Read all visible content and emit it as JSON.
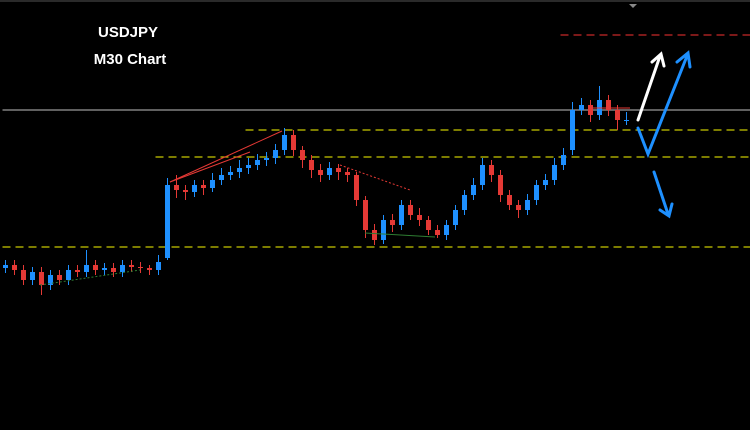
{
  "chart_data": {
    "type": "candlestick",
    "title": "USDJPY",
    "subtitle": "M30 Chart",
    "ylim": [
      0,
      430
    ],
    "up_color": "#1e90ff",
    "down_color": "#e53935",
    "open": [
      162,
      165,
      160,
      150,
      158,
      145,
      155,
      150,
      160,
      158,
      165,
      160,
      162,
      158,
      165,
      163,
      162,
      160,
      172,
      245,
      240,
      238,
      245,
      242,
      250,
      255,
      258,
      262,
      265,
      270,
      272,
      280,
      295,
      280,
      270,
      260,
      255,
      262,
      258,
      255,
      230,
      200,
      190,
      210,
      205,
      225,
      215,
      210,
      200,
      195,
      205,
      220,
      235,
      245,
      265,
      255,
      235,
      225,
      220,
      230,
      245,
      250,
      265,
      280,
      320,
      325,
      315,
      330,
      320,
      310
    ],
    "high": [
      170,
      170,
      165,
      163,
      163,
      160,
      160,
      165,
      165,
      180,
      170,
      167,
      167,
      170,
      170,
      168,
      165,
      175,
      252,
      255,
      245,
      250,
      250,
      257,
      262,
      264,
      270,
      272,
      276,
      278,
      286,
      302,
      300,
      284,
      275,
      266,
      268,
      266,
      262,
      258,
      234,
      206,
      215,
      216,
      230,
      230,
      222,
      214,
      205,
      210,
      225,
      240,
      252,
      272,
      270,
      260,
      240,
      230,
      236,
      250,
      256,
      272,
      282,
      328,
      332,
      330,
      344,
      335,
      325,
      318
    ],
    "low": [
      157,
      155,
      145,
      145,
      135,
      140,
      145,
      145,
      153,
      153,
      155,
      155,
      153,
      153,
      158,
      157,
      155,
      155,
      170,
      232,
      230,
      233,
      235,
      238,
      245,
      250,
      252,
      256,
      260,
      264,
      266,
      275,
      274,
      262,
      252,
      248,
      250,
      250,
      248,
      224,
      192,
      185,
      186,
      198,
      200,
      210,
      204,
      195,
      192,
      190,
      200,
      215,
      230,
      240,
      248,
      228,
      220,
      212,
      215,
      225,
      240,
      245,
      260,
      275,
      315,
      308,
      310,
      314,
      300,
      305
    ],
    "close": [
      165,
      160,
      150,
      158,
      145,
      155,
      150,
      160,
      158,
      165,
      160,
      162,
      158,
      165,
      163,
      162,
      160,
      168,
      245,
      240,
      238,
      245,
      242,
      250,
      255,
      258,
      262,
      265,
      270,
      272,
      280,
      295,
      280,
      270,
      260,
      255,
      262,
      258,
      255,
      230,
      200,
      190,
      210,
      205,
      225,
      215,
      210,
      200,
      195,
      205,
      220,
      235,
      245,
      265,
      255,
      235,
      225,
      220,
      230,
      245,
      250,
      265,
      275,
      320,
      325,
      315,
      330,
      320,
      310,
      310
    ],
    "levels": [
      {
        "value": 320,
        "color": "#9a9a9a",
        "from": 0,
        "style": "solid"
      },
      {
        "value": 300,
        "color": "#c8c800",
        "from": 27,
        "style": "dashed"
      },
      {
        "value": 273,
        "color": "#c8c800",
        "from": 17,
        "style": "dashed"
      },
      {
        "value": 183,
        "color": "#c8c800",
        "from": 0,
        "style": "dashed"
      },
      {
        "value": 395,
        "color": "#c62828",
        "from": 62,
        "style": "dashed"
      }
    ]
  }
}
